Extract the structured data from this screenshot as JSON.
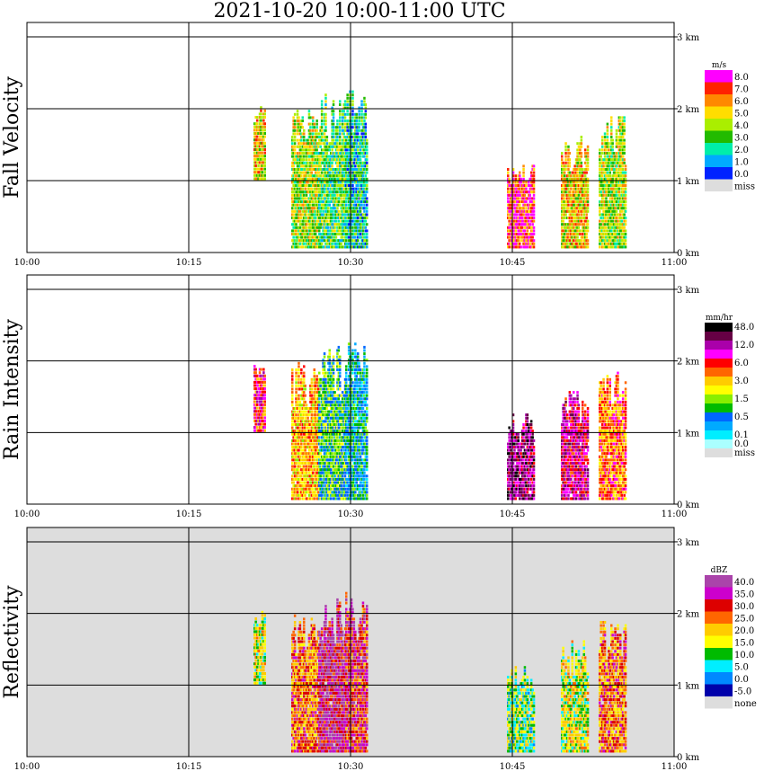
{
  "title": "2021-10-20   10:00-11:00 UTC",
  "x_ticks": [
    "10:00",
    "10:15",
    "10:30",
    "10:45",
    "11:00"
  ],
  "y_ticks": [
    "0 km",
    "1 km",
    "2 km",
    "3 km"
  ],
  "colors": {
    "background": "#ffffff",
    "nodata": "#dddddd",
    "grid": "#000000"
  },
  "chart_data": [
    {
      "type": "heatmap",
      "title": "Fall Velocity",
      "ylabel": "Fall Velocity",
      "x_range": [
        "10:00",
        "11:00"
      ],
      "y_range_km": [
        0,
        3.2
      ],
      "grid": true,
      "legend": {
        "unit": "m/s",
        "entries": [
          {
            "label": "8.0",
            "color": "#ff00ff"
          },
          {
            "label": "7.0",
            "color": "#ff2200"
          },
          {
            "label": "6.0",
            "color": "#ff8800"
          },
          {
            "label": "5.0",
            "color": "#ffdd00"
          },
          {
            "label": "4.0",
            "color": "#aaee00"
          },
          {
            "label": "3.0",
            "color": "#22bb00"
          },
          {
            "label": "2.0",
            "color": "#00eeaa"
          },
          {
            "label": "1.0",
            "color": "#00aaff"
          },
          {
            "label": "0.0",
            "color": "#0022ff"
          },
          {
            "label": "miss",
            "color": "#dddddd"
          }
        ]
      },
      "echoes": [
        {
          "t0": 21.0,
          "t1": 22.0,
          "base": 1.0,
          "top": 2.05,
          "level": 3
        },
        {
          "t0": 24.5,
          "t1": 27.0,
          "base": 0.05,
          "top": 2.0,
          "level": 4
        },
        {
          "t0": 27.0,
          "t1": 29.5,
          "base": 0.05,
          "top": 2.2,
          "level": 5
        },
        {
          "t0": 29.5,
          "t1": 31.5,
          "base": 0.05,
          "top": 2.3,
          "level": 6
        },
        {
          "t0": 44.5,
          "t1": 47.0,
          "base": 0.05,
          "top": 1.25,
          "level": 1
        },
        {
          "t0": 49.5,
          "t1": 52.0,
          "base": 0.05,
          "top": 1.6,
          "level": 3
        },
        {
          "t0": 53.0,
          "t1": 55.5,
          "base": 0.05,
          "top": 1.9,
          "level": 4
        }
      ]
    },
    {
      "type": "heatmap",
      "title": "Rain Intensity",
      "ylabel": "Rain Intensity",
      "x_range": [
        "10:00",
        "11:00"
      ],
      "y_range_km": [
        0,
        3.2
      ],
      "grid": true,
      "legend": {
        "unit": "mm/hr",
        "entries": [
          {
            "label": "48.0",
            "color": "#000000"
          },
          {
            "label": "",
            "color": "#660044"
          },
          {
            "label": "12.0",
            "color": "#aa00aa"
          },
          {
            "label": "",
            "color": "#ff00ff"
          },
          {
            "label": "6.0",
            "color": "#ff0000"
          },
          {
            "label": "",
            "color": "#ff6600"
          },
          {
            "label": "3.0",
            "color": "#ffcc00"
          },
          {
            "label": "",
            "color": "#ffff00"
          },
          {
            "label": "1.5",
            "color": "#88ee00"
          },
          {
            "label": "",
            "color": "#00bb00"
          },
          {
            "label": "0.5",
            "color": "#0066ff"
          },
          {
            "label": "",
            "color": "#00aaff"
          },
          {
            "label": "0.1",
            "color": "#00eeff"
          },
          {
            "label": "0.0",
            "color": "#aaffff"
          },
          {
            "label": "miss",
            "color": "#dddddd"
          }
        ]
      },
      "echoes": [
        {
          "t0": 21.0,
          "t1": 22.0,
          "base": 1.0,
          "top": 2.0,
          "level": 4
        },
        {
          "t0": 24.5,
          "t1": 27.0,
          "base": 0.05,
          "top": 2.0,
          "level": 6
        },
        {
          "t0": 27.0,
          "t1": 29.5,
          "base": 0.05,
          "top": 2.2,
          "level": 9
        },
        {
          "t0": 29.5,
          "t1": 31.5,
          "base": 0.05,
          "top": 2.3,
          "level": 10
        },
        {
          "t0": 44.5,
          "t1": 47.0,
          "base": 0.05,
          "top": 1.25,
          "level": 2
        },
        {
          "t0": 49.5,
          "t1": 52.0,
          "base": 0.05,
          "top": 1.6,
          "level": 3
        },
        {
          "t0": 53.0,
          "t1": 55.5,
          "base": 0.05,
          "top": 1.9,
          "level": 5
        }
      ]
    },
    {
      "type": "heatmap",
      "title": "Reflectivity",
      "ylabel": "Reflectivity",
      "x_range": [
        "10:00",
        "11:00"
      ],
      "y_range_km": [
        0,
        3.2
      ],
      "grid": true,
      "legend": {
        "unit": "dBZ",
        "entries": [
          {
            "label": "40.0",
            "color": "#aa44aa"
          },
          {
            "label": "35.0",
            "color": "#cc00cc"
          },
          {
            "label": "30.0",
            "color": "#dd0000"
          },
          {
            "label": "25.0",
            "color": "#ff6600"
          },
          {
            "label": "20.0",
            "color": "#ffcc00"
          },
          {
            "label": "15.0",
            "color": "#ffff00"
          },
          {
            "label": "10.0",
            "color": "#00bb00"
          },
          {
            "label": "5.0",
            "color": "#00eeff"
          },
          {
            "label": "0.0",
            "color": "#0088ff"
          },
          {
            "label": "-5.0",
            "color": "#0000aa"
          },
          {
            "label": "none",
            "color": "#dddddd"
          }
        ]
      },
      "echoes": [
        {
          "t0": 21.0,
          "t1": 22.0,
          "base": 1.0,
          "top": 2.05,
          "level": 5
        },
        {
          "t0": 24.5,
          "t1": 27.0,
          "base": 0.05,
          "top": 2.0,
          "level": 3
        },
        {
          "t0": 27.0,
          "t1": 29.5,
          "base": 0.05,
          "top": 2.2,
          "level": 1
        },
        {
          "t0": 29.5,
          "t1": 31.5,
          "base": 0.05,
          "top": 2.3,
          "level": 2
        },
        {
          "t0": 44.5,
          "t1": 47.0,
          "base": 0.05,
          "top": 1.25,
          "level": 6
        },
        {
          "t0": 49.5,
          "t1": 52.0,
          "base": 0.05,
          "top": 1.6,
          "level": 5
        },
        {
          "t0": 53.0,
          "t1": 55.5,
          "base": 0.05,
          "top": 1.9,
          "level": 3
        }
      ]
    }
  ]
}
